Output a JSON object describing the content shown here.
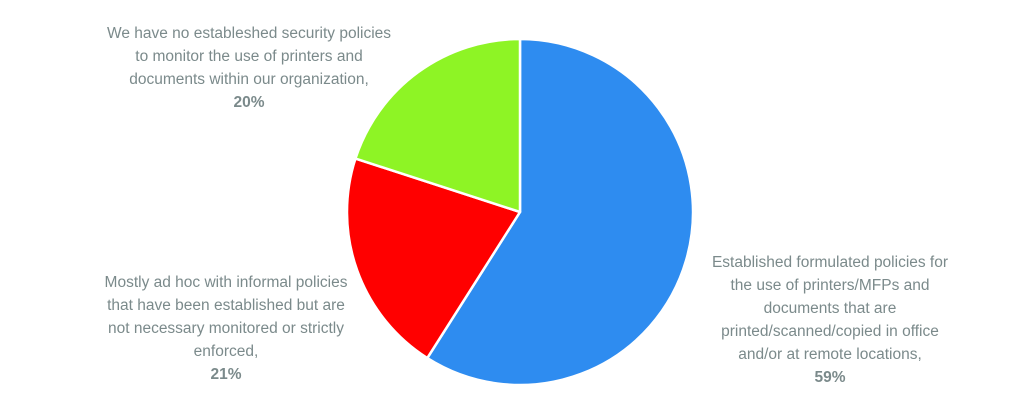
{
  "chart_data": {
    "type": "pie",
    "title": "",
    "start_angle_deg": 0,
    "direction": "clockwise",
    "slices": [
      {
        "name": "established",
        "label_lines": [
          "Established formulated policies for",
          "the use of printers/MFPs and",
          "documents that are",
          "printed/scanned/copied in office",
          "and/or at remote locations,"
        ],
        "value": 59,
        "value_label": "59%",
        "color": "#2e8cf0"
      },
      {
        "name": "ad-hoc",
        "label_lines": [
          "Mostly ad hoc with informal policies",
          "that have been established but are",
          "not necessary monitored or strictly",
          "enforced,"
        ],
        "value": 21,
        "value_label": "21%",
        "color": "#ff0000"
      },
      {
        "name": "none",
        "label_lines": [
          "We have no estableshed security policies",
          "to monitor the use of printers and",
          "documents within our organization,"
        ],
        "value": 20,
        "value_label": "20%",
        "color": "#8ef425"
      }
    ]
  }
}
